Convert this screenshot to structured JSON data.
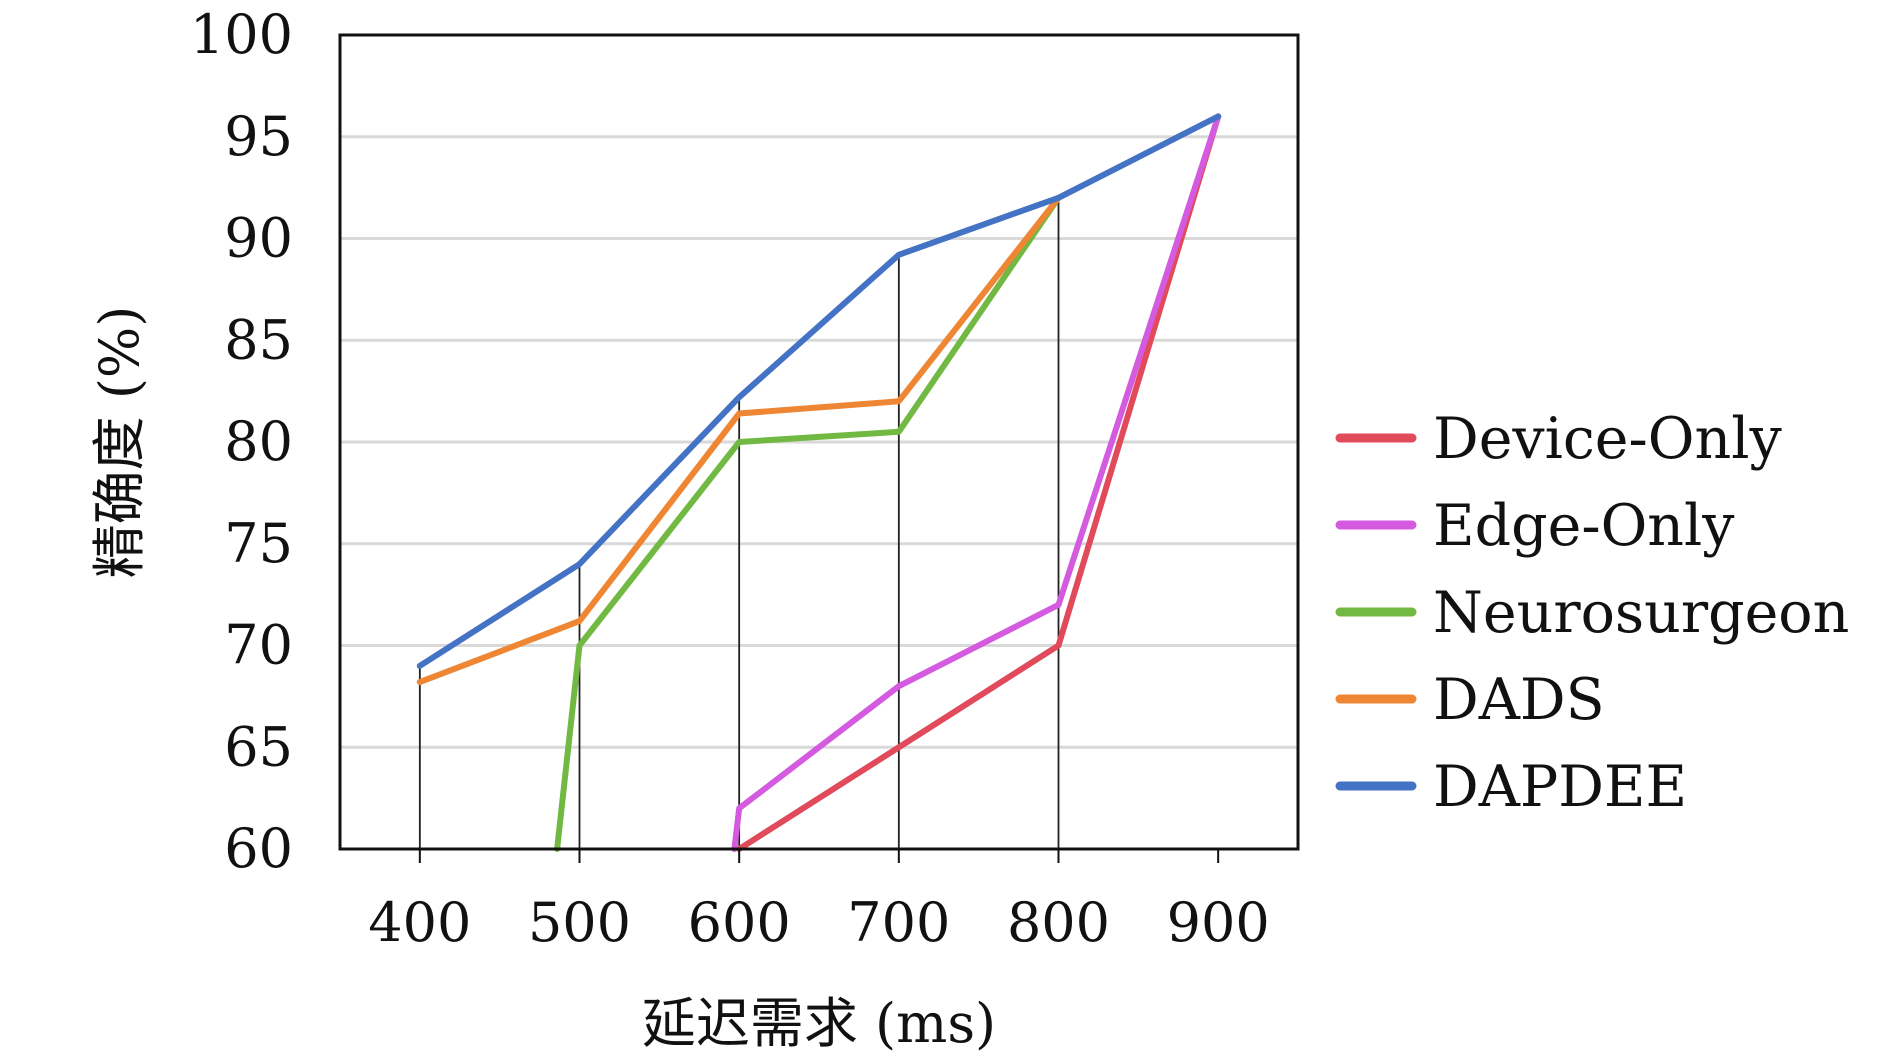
{
  "chart_data": {
    "type": "line",
    "title": "",
    "xlabel": "延迟需求 (ms)",
    "ylabel": "精确度 (%)",
    "x": [
      400,
      500,
      600,
      700,
      800,
      900
    ],
    "x_tick_labels": [
      "400",
      "500",
      "600",
      "700",
      "800",
      "900"
    ],
    "y_tick_labels": [
      "60",
      "65",
      "70",
      "75",
      "80",
      "85",
      "90",
      "95",
      "100"
    ],
    "xlim": [
      350,
      950
    ],
    "ylim": [
      60,
      100
    ],
    "grid": "horizontal",
    "legend_position": "right",
    "drop_lines": true,
    "series": [
      {
        "name": "Device-Only",
        "color": "#e04a5a",
        "x": [
          600,
          700,
          800,
          900
        ],
        "values": [
          60,
          65,
          70,
          96
        ]
      },
      {
        "name": "Edge-Only",
        "color": "#d45ae0",
        "x": [
          597,
          600,
          700,
          800,
          900
        ],
        "values": [
          60,
          62,
          68,
          72,
          96
        ]
      },
      {
        "name": "Neurosurgeon",
        "color": "#72b944",
        "x": [
          486,
          500,
          600,
          700,
          800
        ],
        "values": [
          60,
          70,
          80,
          80.5,
          92
        ]
      },
      {
        "name": "DADS",
        "color": "#ee8633",
        "x": [
          400,
          500,
          600,
          700,
          800
        ],
        "values": [
          68.2,
          71.2,
          81.4,
          82,
          92
        ]
      },
      {
        "name": "DAPDEE",
        "color": "#4472c4",
        "x": [
          400,
          500,
          600,
          700,
          800,
          900
        ],
        "values": [
          69,
          74,
          82.2,
          89.2,
          92,
          96
        ]
      }
    ]
  }
}
